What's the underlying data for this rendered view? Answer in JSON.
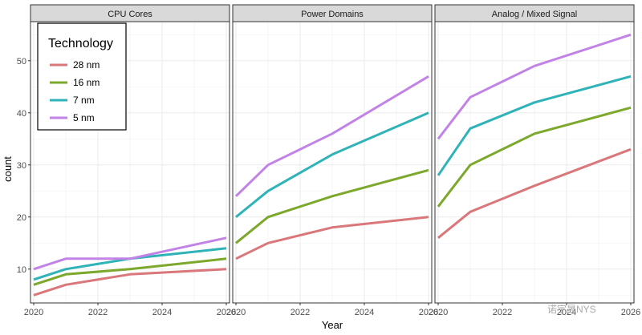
{
  "chart_data": {
    "type": "line",
    "xlabel": "Year",
    "ylabel": "count",
    "x": [
      2020,
      2021,
      2023,
      2026
    ],
    "x_ticks": [
      2020,
      2022,
      2024,
      2026
    ],
    "y_ticks": [
      10,
      20,
      30,
      40,
      50
    ],
    "xlim": [
      2019.9,
      2026.1
    ],
    "ylim": [
      3.5,
      57.5
    ],
    "grid": true,
    "legend": {
      "title": "Technology",
      "placement": "top-left"
    },
    "panels": [
      {
        "title": "CPU Cores",
        "series": [
          {
            "name": "28 nm",
            "values": [
              5,
              7,
              9,
              10
            ]
          },
          {
            "name": "16 nm",
            "values": [
              7,
              9,
              10,
              12
            ]
          },
          {
            "name": "7 nm",
            "values": [
              8,
              10,
              12,
              14
            ]
          },
          {
            "name": "5 nm",
            "values": [
              10,
              12,
              12,
              16
            ]
          }
        ]
      },
      {
        "title": "Power Domains",
        "series": [
          {
            "name": "28 nm",
            "values": [
              12,
              15,
              18,
              20
            ]
          },
          {
            "name": "16 nm",
            "values": [
              15,
              20,
              24,
              29
            ]
          },
          {
            "name": "7 nm",
            "values": [
              20,
              25,
              32,
              40
            ]
          },
          {
            "name": "5 nm",
            "values": [
              24,
              30,
              36,
              47
            ]
          }
        ]
      },
      {
        "title": "Analog / Mixed Signal",
        "series": [
          {
            "name": "28 nm",
            "values": [
              16,
              21,
              26,
              33
            ]
          },
          {
            "name": "16 nm",
            "values": [
              22,
              30,
              36,
              41
            ]
          },
          {
            "name": "7 nm",
            "values": [
              28,
              37,
              42,
              47
            ]
          },
          {
            "name": "5 nm",
            "values": [
              35,
              43,
              49,
              55
            ]
          }
        ]
      }
    ],
    "colors": {
      "28 nm": "#d9777b",
      "16 nm": "#7ca82c",
      "7 nm": "#2fb3b8",
      "5 nm": "#c283e6"
    }
  },
  "watermark": "诺宇晟NYS"
}
